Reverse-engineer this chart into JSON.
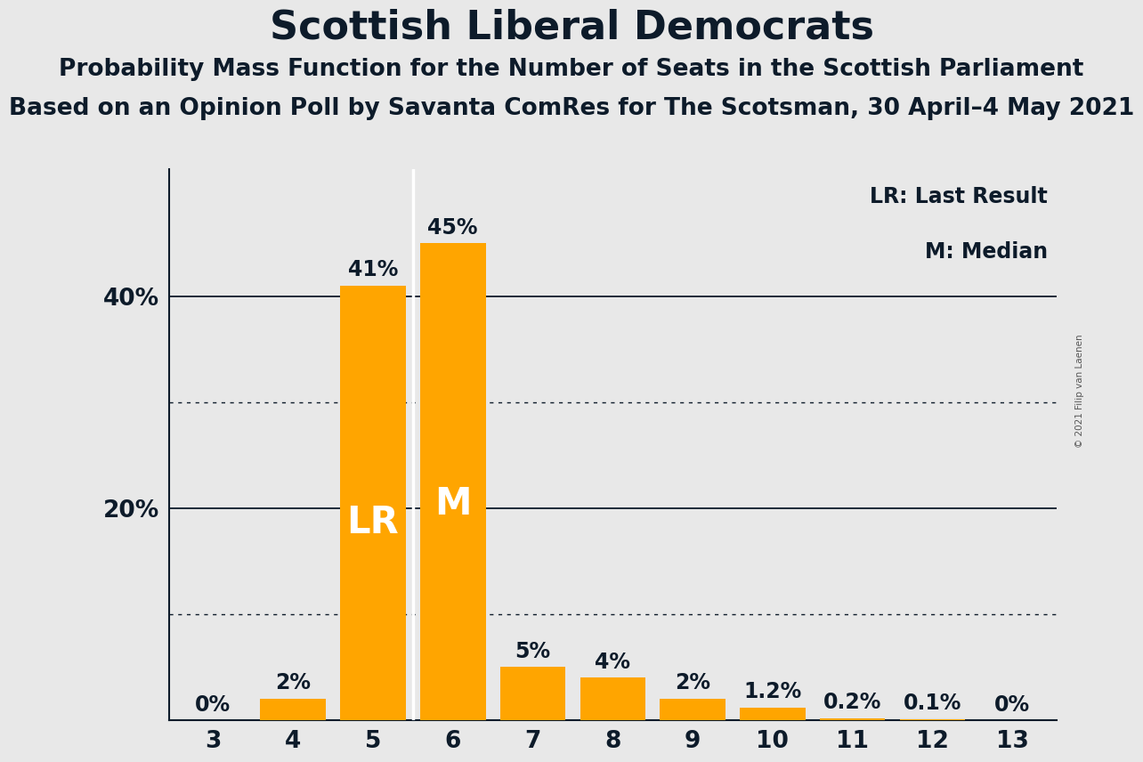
{
  "title": "Scottish Liberal Democrats",
  "subtitle1": "Probability Mass Function for the Number of Seats in the Scottish Parliament",
  "subtitle2": "Based on an Opinion Poll by Savanta ComRes for The Scotsman, 30 April–4 May 2021",
  "copyright": "© 2021 Filip van Laenen",
  "categories": [
    3,
    4,
    5,
    6,
    7,
    8,
    9,
    10,
    11,
    12,
    13
  ],
  "values": [
    0.0,
    2.0,
    41.0,
    45.0,
    5.0,
    4.0,
    2.0,
    1.2,
    0.2,
    0.1,
    0.0
  ],
  "labels": [
    "0%",
    "2%",
    "41%",
    "45%",
    "5%",
    "4%",
    "2%",
    "1.2%",
    "0.2%",
    "0.1%",
    "0%"
  ],
  "bar_color": "#FFA500",
  "background_color": "#E8E8E8",
  "text_color": "#0d1b2a",
  "lr_bar_index": 2,
  "median_bar_index": 3,
  "legend_lr": "LR: Last Result",
  "legend_m": "M: Median",
  "solid_yticks": [
    20,
    40
  ],
  "dotted_yticks": [
    10,
    30
  ],
  "ylim": [
    0,
    52
  ],
  "title_fontsize": 32,
  "subtitle_fontsize": 19,
  "label_fontsize": 17,
  "tick_fontsize": 19,
  "lr_m_fontsize": 30,
  "legend_fontsize": 17
}
